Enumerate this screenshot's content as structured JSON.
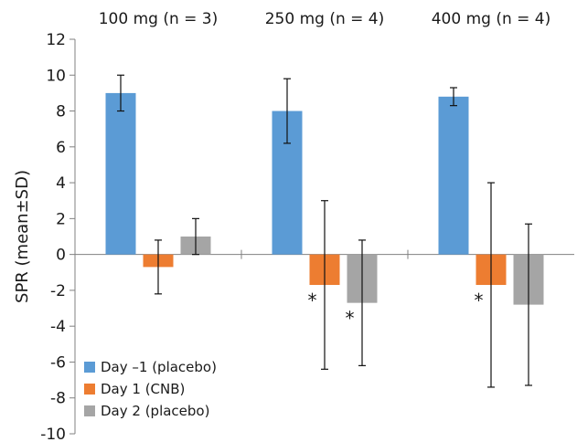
{
  "chart_data": {
    "type": "bar",
    "categories": [
      "100 mg (n = 3)",
      "250 mg (n = 4)",
      "400 mg (n = 4)"
    ],
    "ylabel": "SPR (mean±SD)",
    "xlabel": "",
    "ylim": [
      -10,
      12
    ],
    "yticks": [
      "12",
      "10",
      "8",
      "6",
      "4",
      "2",
      "0",
      "-2",
      "-4",
      "-6",
      "-8",
      "-10"
    ],
    "legend_position": "bottom-left",
    "grid": false,
    "series": [
      {
        "name": "Day –1 (placebo)",
        "color": "#5b9bd5",
        "values": [
          9.0,
          8.0,
          8.8
        ],
        "errors": [
          1.0,
          1.8,
          0.5
        ]
      },
      {
        "name": "Day 1 (CNB)",
        "color": "#ed7d31",
        "values": [
          -0.7,
          -1.7,
          -1.7
        ],
        "errors": [
          1.5,
          4.7,
          5.7
        ]
      },
      {
        "name": "Day 2 (placebo)",
        "color": "#a5a5a5",
        "values": [
          1.0,
          -2.7,
          -2.8
        ],
        "errors": [
          1.0,
          3.5,
          4.5
        ]
      }
    ],
    "annotations": [
      {
        "text": "*",
        "category": 1,
        "series": 1
      },
      {
        "text": "*",
        "category": 1,
        "series": 2
      },
      {
        "text": "*",
        "category": 2,
        "series": 1
      }
    ]
  }
}
